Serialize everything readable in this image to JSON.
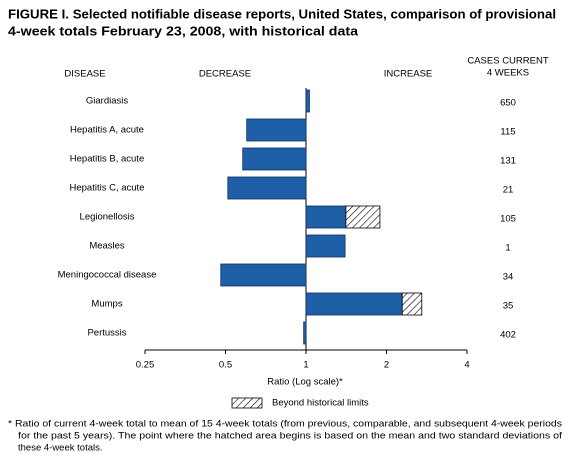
{
  "chart_data": {
    "type": "bar",
    "orientation": "horizontal",
    "title": [
      "FIGURE I. Selected notifiable disease reports, United States, comparison of provisional",
      "4-week totals February 23, 2008, with historical data"
    ],
    "category_header": "DISEASE",
    "decrease_label": "DECREASE",
    "increase_label": "INCREASE",
    "cases_header": [
      "CASES CURRENT",
      "4 WEEKS"
    ],
    "categories": [
      "Giardiasis",
      "Hepatitis A, acute",
      "Hepatitis B, acute",
      "Hepatitis C, acute",
      "Legionellosis",
      "Measles",
      "Meningococcal disease",
      "Mumps",
      "Pertussis"
    ],
    "values": [
      1.03,
      0.6,
      0.58,
      0.51,
      1.89,
      1.4,
      0.48,
      2.71,
      0.98
    ],
    "hatched_start": [
      null,
      null,
      null,
      null,
      1.41,
      null,
      null,
      2.29,
      null
    ],
    "cases": [
      "650",
      "115",
      "131",
      "21",
      "105",
      "1",
      "34",
      "35",
      "402"
    ],
    "color": "#1f5fa8",
    "xscale": "log",
    "xlim": [
      0.25,
      4
    ],
    "xticks": [
      0.25,
      0.5,
      1,
      2,
      4
    ],
    "xlabel": "Ratio (Log scale)*",
    "legend_label": "Beyond historical limits",
    "footnote": [
      "* Ratio of current 4-week total to mean of 15 4-week totals (from previous, comparable, and subsequent 4-week periods",
      "for the past 5 years). The point where the hatched area begins is based on the mean and two standard deviations of",
      "these 4-week totals."
    ]
  }
}
